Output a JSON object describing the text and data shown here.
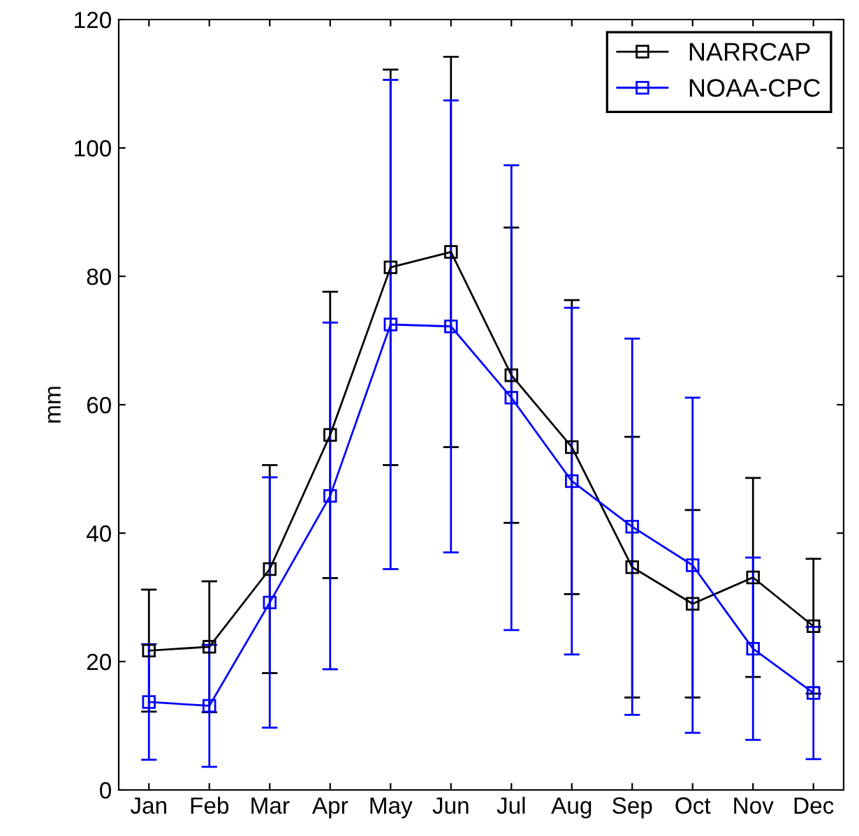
{
  "chart_data": {
    "type": "line",
    "ylabel": "mm",
    "categories": [
      "Jan",
      "Feb",
      "Mar",
      "Apr",
      "May",
      "Jun",
      "Jul",
      "Aug",
      "Sep",
      "Oct",
      "Nov",
      "Dec"
    ],
    "series": [
      {
        "name": "NARRCAP",
        "color": "#000000",
        "values": [
          21.7,
          22.3,
          34.4,
          55.3,
          81.4,
          83.8,
          64.6,
          53.4,
          34.7,
          29.0,
          33.1,
          25.5
        ],
        "errors": [
          9.5,
          10.2,
          16.2,
          22.3,
          30.8,
          30.4,
          23,
          22.9,
          20.3,
          14.6,
          15.5,
          10.5
        ]
      },
      {
        "name": "NOAA-CPC",
        "color": "#0000ff",
        "values": [
          13.7,
          13.1,
          29.2,
          45.8,
          72.5,
          72.2,
          61.1,
          48.1,
          41.0,
          35.0,
          22.0,
          15.1
        ],
        "errors": [
          9,
          9.5,
          19.5,
          27,
          38.1,
          35.2,
          36.2,
          27,
          29.3,
          26.1,
          14.2,
          10.3
        ]
      }
    ],
    "ylim": [
      0,
      120
    ],
    "yticks": [
      0,
      20,
      40,
      60,
      80,
      100,
      120
    ],
    "legend": "top right",
    "marker": "square",
    "line_style": "solid",
    "grid": false
  }
}
